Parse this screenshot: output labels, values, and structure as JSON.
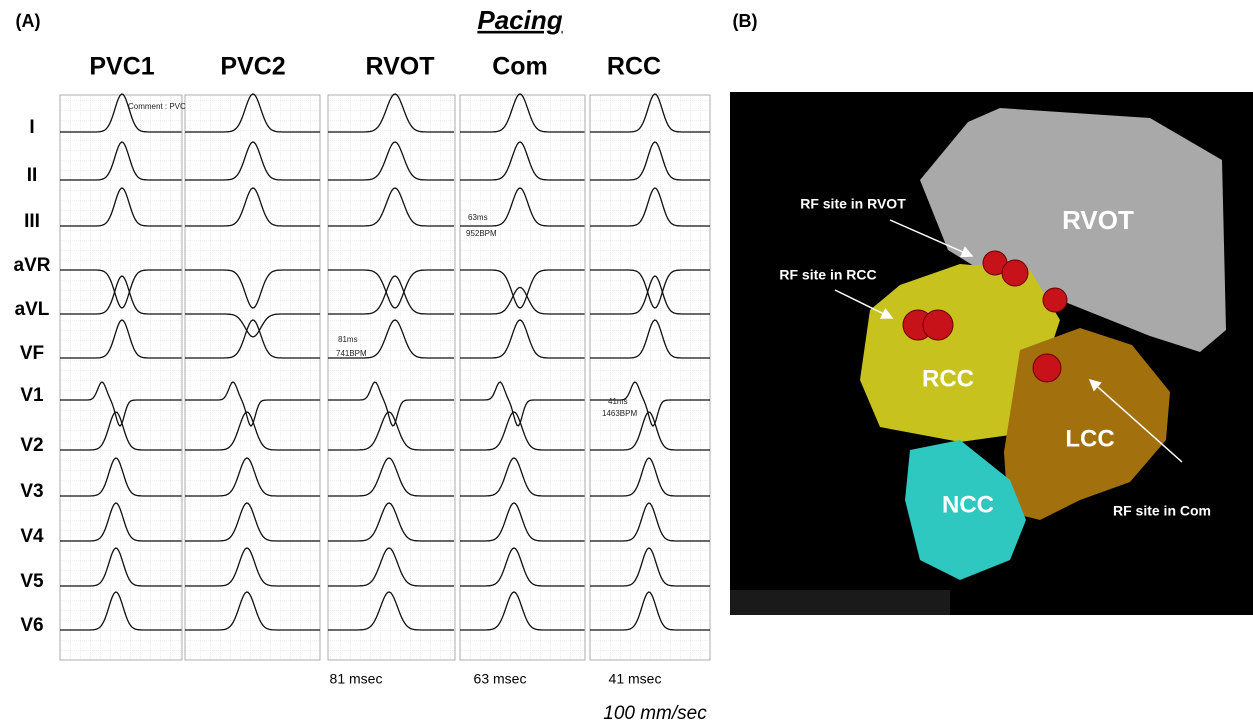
{
  "panel_a": {
    "label": "(A)",
    "pacing_title": "Pacing",
    "columns": [
      "PVC1",
      "PVC2",
      "RVOT",
      "Com",
      "RCC"
    ],
    "leads": [
      "I",
      "II",
      "III",
      "aVR",
      "aVL",
      "VF",
      "V1",
      "V2",
      "V3",
      "V4",
      "V5",
      "V6"
    ],
    "annotations": [
      "Comment : PVC",
      "81ms",
      "741BPM",
      "63ms",
      "952BPM",
      "41ms",
      "1463BPM"
    ],
    "intervals": [
      "81 msec",
      "63 msec",
      "41 msec"
    ],
    "speed": "100 mm/sec"
  },
  "panel_b": {
    "label": "(B)",
    "structures": [
      "RVOT",
      "RCC",
      "LCC",
      "NCC"
    ],
    "sites": [
      "RF site in RVOT",
      "RF site in RCC",
      "RF site in Com"
    ]
  }
}
